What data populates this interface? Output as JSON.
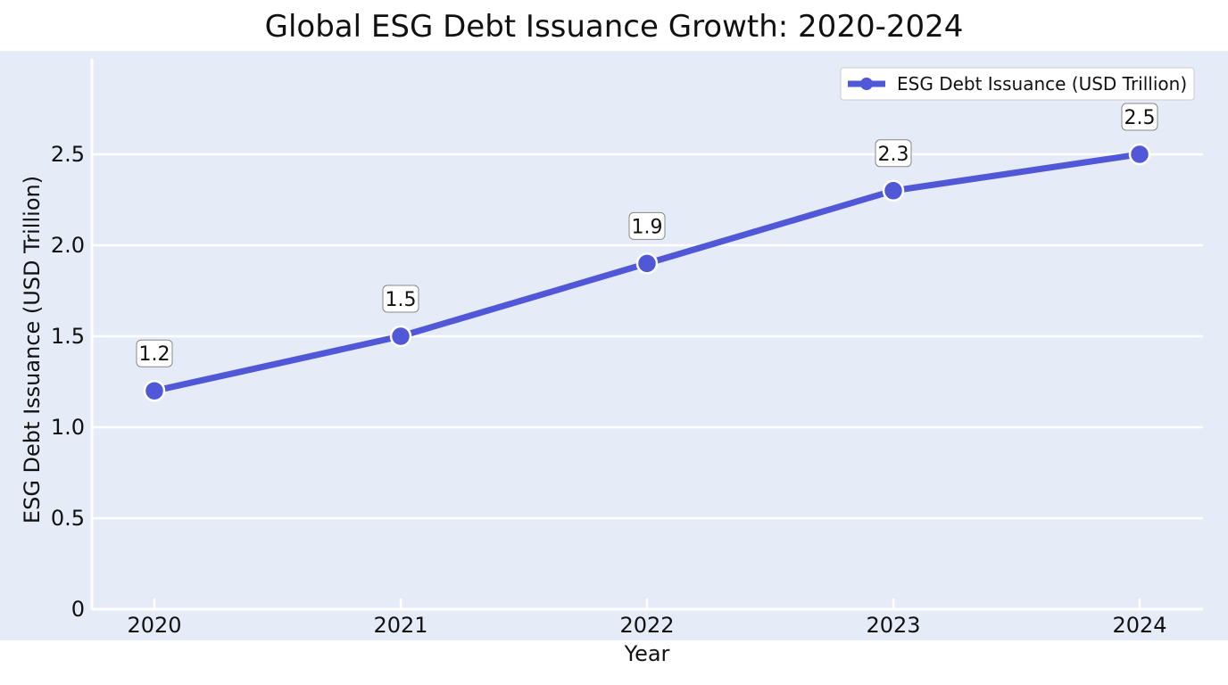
{
  "chart_data": {
    "type": "line",
    "title": "Global ESG Debt Issuance Growth: 2020-2024",
    "xlabel": "Year",
    "ylabel": "ESG Debt Issuance (USD Trillion)",
    "categories": [
      "2020",
      "2021",
      "2022",
      "2023",
      "2024"
    ],
    "series": [
      {
        "name": "ESG Debt Issuance (USD Trillion)",
        "values": [
          1.2,
          1.5,
          1.9,
          2.3,
          2.5
        ],
        "labels": [
          "1.2",
          "1.5",
          "1.9",
          "2.3",
          "2.5"
        ],
        "color": "#5058d8"
      }
    ],
    "ylim": [
      0,
      3.0
    ],
    "yticks": [
      0,
      0.5,
      1.0,
      1.5,
      2.0,
      2.5
    ],
    "ytick_labels": [
      "0",
      "0.5",
      "1.0",
      "1.5",
      "2.0",
      "2.5"
    ],
    "grid": true,
    "legend_position": "top-right",
    "background_color": "#e6ebf8",
    "grid_color": "#ffffff"
  }
}
